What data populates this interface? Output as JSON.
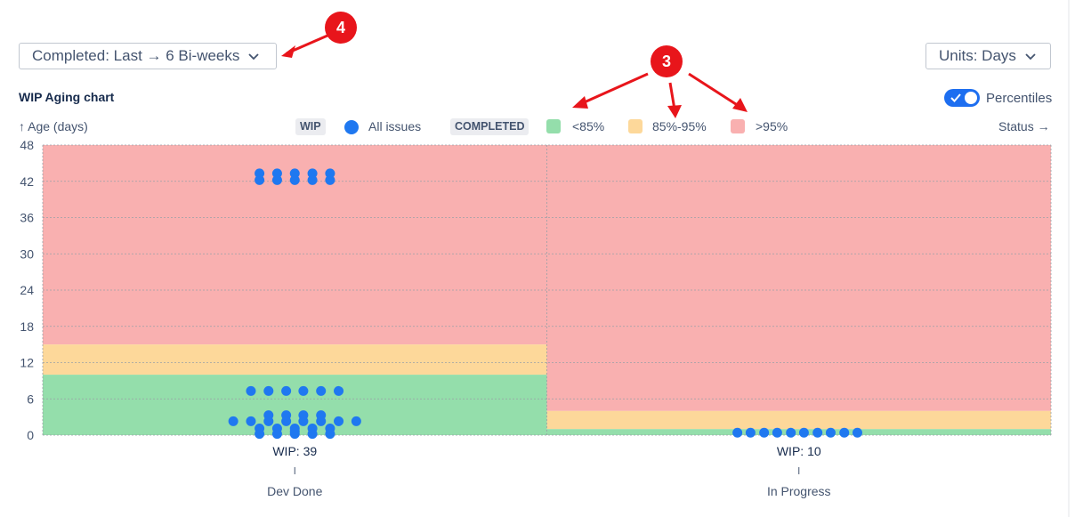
{
  "header": {
    "period_label": "Completed: Last → 6 Bi-weeks",
    "units_label": "Units: Days",
    "chart_title": "WIP Aging chart",
    "percentiles_label": "Percentiles",
    "percentiles_on": true
  },
  "legend": {
    "wip_tag": "WIP",
    "all_issues": "All issues",
    "completed_tag": "COMPLETED",
    "p_low": "<85%",
    "p_mid": "85%-95%",
    "p_high": ">95%",
    "colors": {
      "issue": "#1f78f0",
      "low": "#94deab",
      "mid": "#fdd89a",
      "high": "#f9b0b0"
    }
  },
  "annotations": {
    "badge_4": "4",
    "badge_3": "3"
  },
  "chart_data": {
    "type": "scatter",
    "ylabel": "↑ Age (days)",
    "xlabel": "Status →",
    "ylim": [
      0,
      48
    ],
    "yticks": [
      "0",
      "6",
      "12",
      "18",
      "24",
      "30",
      "36",
      "42",
      "48"
    ],
    "grid": true,
    "columns": [
      {
        "status": "Dev Done",
        "wip_label": "WIP: 39",
        "bands": {
          "p85": 10,
          "p95": 15
        },
        "points": [
          {
            "x": -0.07,
            "y": 43.3
          },
          {
            "x": -0.035,
            "y": 43.3
          },
          {
            "x": 0,
            "y": 43.3
          },
          {
            "x": 0.035,
            "y": 43.3
          },
          {
            "x": 0.07,
            "y": 43.3
          },
          {
            "x": -0.07,
            "y": 42.2
          },
          {
            "x": -0.035,
            "y": 42.2
          },
          {
            "x": 0,
            "y": 42.2
          },
          {
            "x": 0.035,
            "y": 42.2
          },
          {
            "x": 0.07,
            "y": 42.2
          },
          {
            "x": -0.087,
            "y": 7.3
          },
          {
            "x": -0.052,
            "y": 7.3
          },
          {
            "x": -0.017,
            "y": 7.3
          },
          {
            "x": 0.017,
            "y": 7.3
          },
          {
            "x": 0.052,
            "y": 7.3
          },
          {
            "x": 0.087,
            "y": 7.3
          },
          {
            "x": -0.052,
            "y": 3.3
          },
          {
            "x": -0.017,
            "y": 3.3
          },
          {
            "x": 0.017,
            "y": 3.3
          },
          {
            "x": 0.052,
            "y": 3.3
          },
          {
            "x": -0.122,
            "y": 2.3
          },
          {
            "x": -0.087,
            "y": 2.3
          },
          {
            "x": -0.052,
            "y": 2.3
          },
          {
            "x": -0.017,
            "y": 2.3
          },
          {
            "x": 0.017,
            "y": 2.3
          },
          {
            "x": 0.052,
            "y": 2.3
          },
          {
            "x": 0.087,
            "y": 2.3
          },
          {
            "x": 0.122,
            "y": 2.3
          },
          {
            "x": -0.07,
            "y": 1.1
          },
          {
            "x": -0.035,
            "y": 1.1
          },
          {
            "x": 0,
            "y": 1.1
          },
          {
            "x": 0.035,
            "y": 1.1
          },
          {
            "x": 0.07,
            "y": 1.1
          },
          {
            "x": -0.07,
            "y": 0.2
          },
          {
            "x": -0.035,
            "y": 0.2
          },
          {
            "x": 0,
            "y": 0.2
          },
          {
            "x": 0.035,
            "y": 0.2
          },
          {
            "x": 0.07,
            "y": 0.2
          },
          {
            "x": 0.0,
            "y": 0.6
          }
        ]
      },
      {
        "status": "In Progress",
        "wip_label": "WIP: 10",
        "bands": {
          "p85": 1,
          "p95": 4
        },
        "points": [
          {
            "x": -0.122,
            "y": 0.4
          },
          {
            "x": -0.096,
            "y": 0.4
          },
          {
            "x": -0.069,
            "y": 0.4
          },
          {
            "x": -0.043,
            "y": 0.4
          },
          {
            "x": -0.016,
            "y": 0.4
          },
          {
            "x": 0.01,
            "y": 0.4
          },
          {
            "x": 0.037,
            "y": 0.4
          },
          {
            "x": 0.063,
            "y": 0.4
          },
          {
            "x": 0.09,
            "y": 0.4
          },
          {
            "x": 0.116,
            "y": 0.4
          }
        ]
      }
    ]
  }
}
